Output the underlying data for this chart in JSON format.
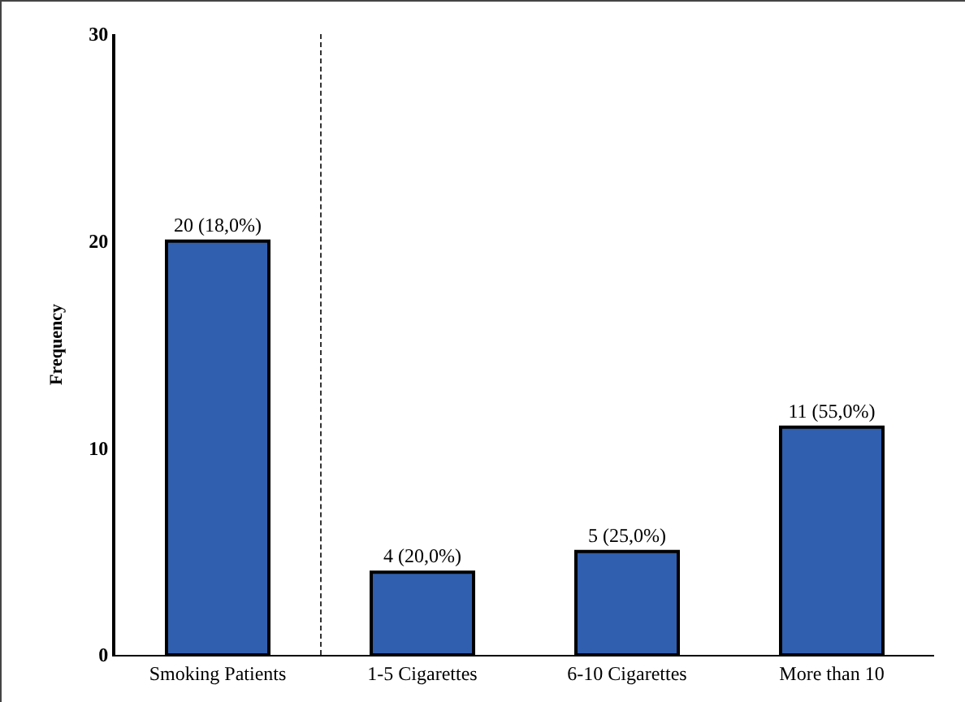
{
  "chart_data": {
    "type": "bar",
    "ylabel": "Frequency",
    "categories": [
      "Smoking Patients",
      "1-5 Cigarettes",
      "6-10 Cigarettes",
      "More than 10"
    ],
    "values": [
      20,
      4,
      5,
      11
    ],
    "color": "#2f5fae",
    "value_labels": [
      "20 (18,0%)",
      "4 (20,0%)",
      "5 (25,0%)",
      "11 (55,0%)"
    ],
    "ylim": [
      0,
      30
    ],
    "yticks": [
      0,
      10,
      20,
      30
    ],
    "grid": false
  }
}
